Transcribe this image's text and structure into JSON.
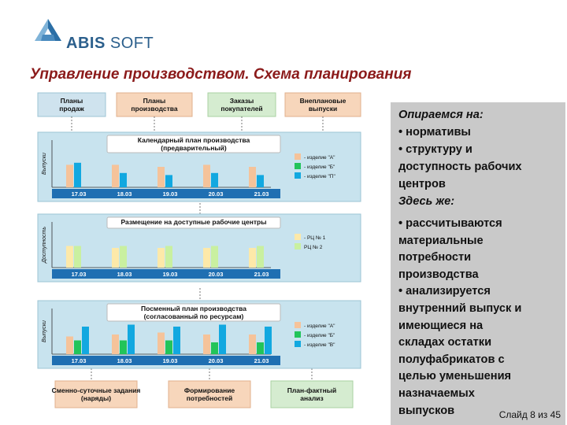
{
  "logo": {
    "abis": "ABIS",
    "soft": "SOFT"
  },
  "title": "Управление производством. Схема планирования",
  "top_boxes": [
    "Планы продаж",
    "Планы производства",
    "Заказы покупателей",
    "Внеплановые выпуски"
  ],
  "panels": [
    {
      "title_1": "Календарный план производства",
      "title_2": "(предварительный)",
      "ylabel": "Выпуски",
      "legend": [
        "- изделие \"А\"",
        "- изделие \"Б\"",
        "- изделие \"П\""
      ],
      "dates": [
        "17.03",
        "18.03",
        "19.03",
        "20.03",
        "21.03"
      ]
    },
    {
      "title_1": "Размещение на доступные рабочие центры",
      "title_2": "",
      "ylabel": "Доступность",
      "legend": [
        "- РЦ № 1",
        "РЦ № 2"
      ],
      "dates": [
        "17.03",
        "18.03",
        "19.03",
        "20.03",
        "21.03"
      ]
    },
    {
      "title_1": "Посменный план производства",
      "title_2": "(согласованный по ресурсам)",
      "ylabel": "Выпуски",
      "legend": [
        "- изделие \"А\"",
        "- изделие \"Б\"",
        "- изделие \"В\""
      ],
      "dates": [
        "17.03",
        "18.03",
        "19.03",
        "20.03",
        "21.03"
      ]
    }
  ],
  "bottom_boxes": [
    "Сменно-суточные задания (наряды)",
    "Формирование потребностей",
    "План-фактный анализ"
  ],
  "notes": {
    "heading1": "Опираемся на:",
    "items1": [
      "• нормативы",
      "• структуру и",
      "доступность рабочих",
      "центров"
    ],
    "heading2": "Здесь же:",
    "body2": "• рассчитываются\nматериальные\nпотребности\nпроизводства\n• анализируется\nвнутренний выпуск и\nимеющиеся на\nскладах остатки\nполуфабрикатов с\nцелью уменьшения\nназначаемых\nвыпусков"
  },
  "slide_label": "Слайд 8 из 45",
  "colors": {
    "title": "#8b1a1a",
    "logo": "#2b5f8c",
    "panel": "#c8e3ee",
    "panel_border": "#9cc4d4",
    "bar_a": "#f5c39a",
    "bar_b": "#22c45a",
    "bar_c": "#12a8e0",
    "box_blue": "#cfe3ee",
    "box_peach": "#f7d6bb",
    "box_green": "#d5ecd0"
  }
}
